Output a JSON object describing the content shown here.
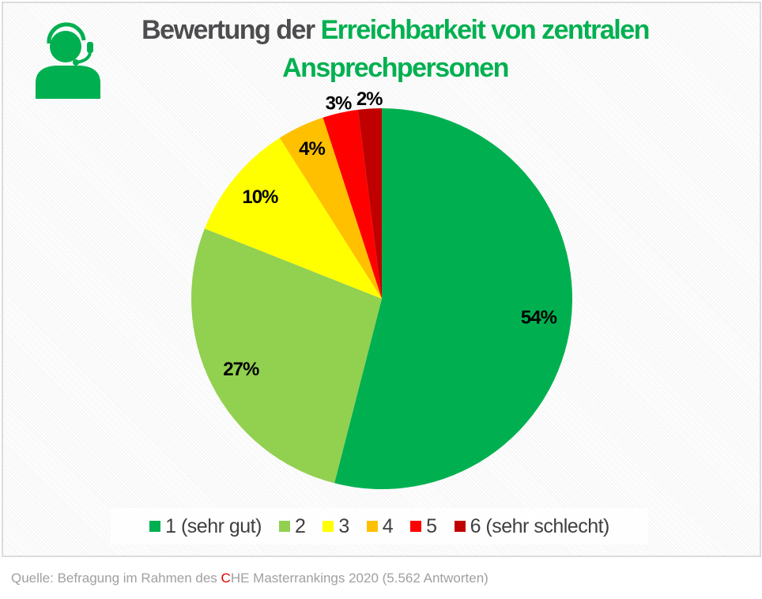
{
  "title": {
    "part1": "Bewertung der ",
    "part2": "Erreichbarkeit von zentralen",
    "line2": "Ansprechpersonen"
  },
  "icon": "support-agent-headset-icon",
  "chart_data": {
    "type": "pie",
    "start": "top, clockwise",
    "categories": [
      "1 (sehr gut)",
      "2",
      "3",
      "4",
      "5",
      "6 (sehr schlecht)"
    ],
    "values": [
      54,
      27,
      10,
      4,
      3,
      2
    ],
    "labels": [
      "54%",
      "27%",
      "10%",
      "4%",
      "3%",
      "2%"
    ],
    "colors": [
      "#00b050",
      "#92d050",
      "#ffff00",
      "#ffc000",
      "#ff0000",
      "#c00000"
    ],
    "legend": "bottom"
  },
  "source": {
    "prefix": "Quelle: Befragung im Rahmen des ",
    "c": "C",
    "suffix": "HE Masterrankings 2020 (5.562 Antworten)"
  }
}
